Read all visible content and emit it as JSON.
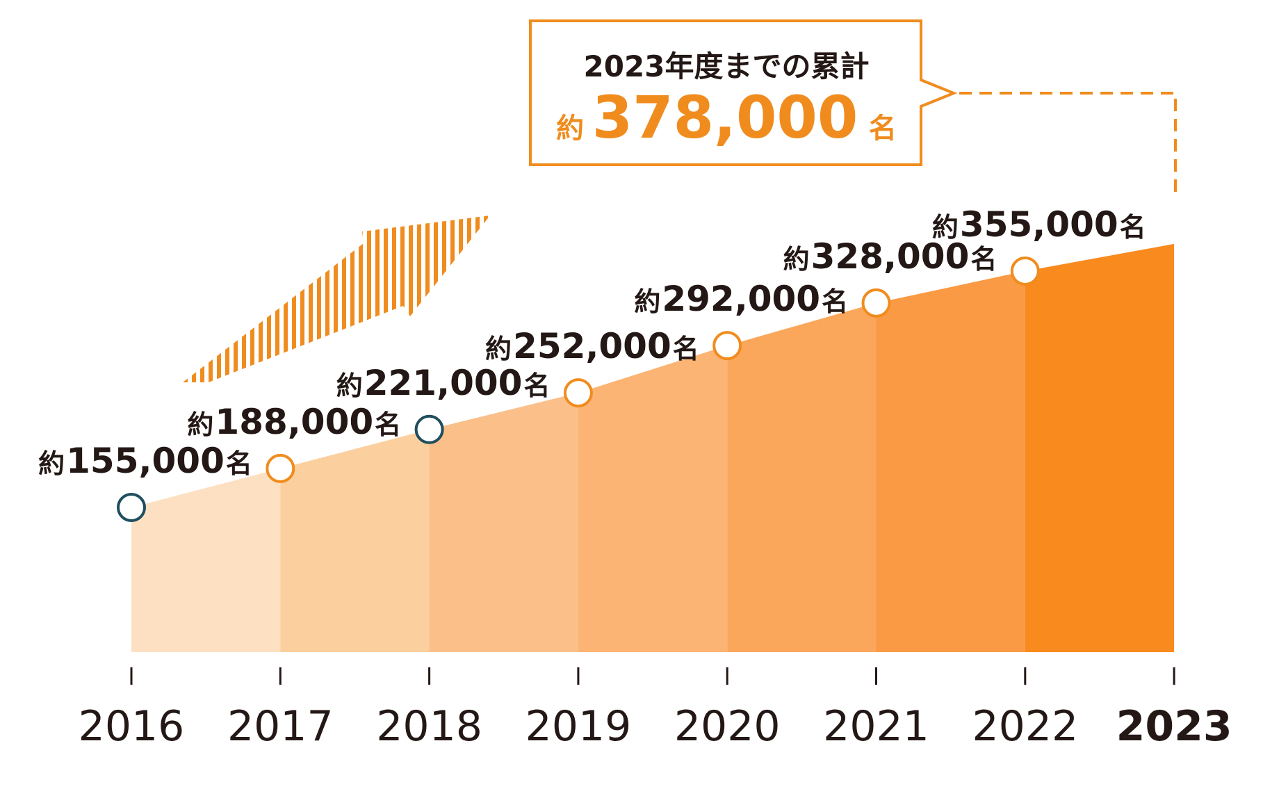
{
  "chart_data": {
    "type": "area",
    "x": [
      "2016",
      "2017",
      "2018",
      "2019",
      "2020",
      "2021",
      "2022",
      "2023"
    ],
    "values": [
      155000,
      188000,
      221000,
      252000,
      292000,
      328000,
      355000,
      378000
    ],
    "point_labels": [
      {
        "prefix": "約",
        "number": "155,000",
        "suffix": "名"
      },
      {
        "prefix": "約",
        "number": "188,000",
        "suffix": "名"
      },
      {
        "prefix": "約",
        "number": "221,000",
        "suffix": "名"
      },
      {
        "prefix": "約",
        "number": "252,000",
        "suffix": "名"
      },
      {
        "prefix": "約",
        "number": "292,000",
        "suffix": "名"
      },
      {
        "prefix": "約",
        "number": "328,000",
        "suffix": "名"
      },
      {
        "prefix": "約",
        "number": "355,000",
        "suffix": "名"
      }
    ],
    "marker_colors": [
      "#1f4e5f",
      "#f08c1e",
      "#1f4e5f",
      "#f08c1e",
      "#f08c1e",
      "#f08c1e",
      "#f08c1e"
    ],
    "band_colors": [
      "#fde0c2",
      "#fccf9f",
      "#fbc08a",
      "#fbb473",
      "#fba75b",
      "#fa9a44",
      "#f98a1e"
    ],
    "ylim": [
      0,
      400000
    ],
    "grid": false,
    "callout": {
      "title": "2023年度までの累計",
      "prefix": "約",
      "number": "378,000",
      "suffix": "名"
    },
    "colors": {
      "accent": "#f08c1e",
      "text": "#231815"
    }
  }
}
